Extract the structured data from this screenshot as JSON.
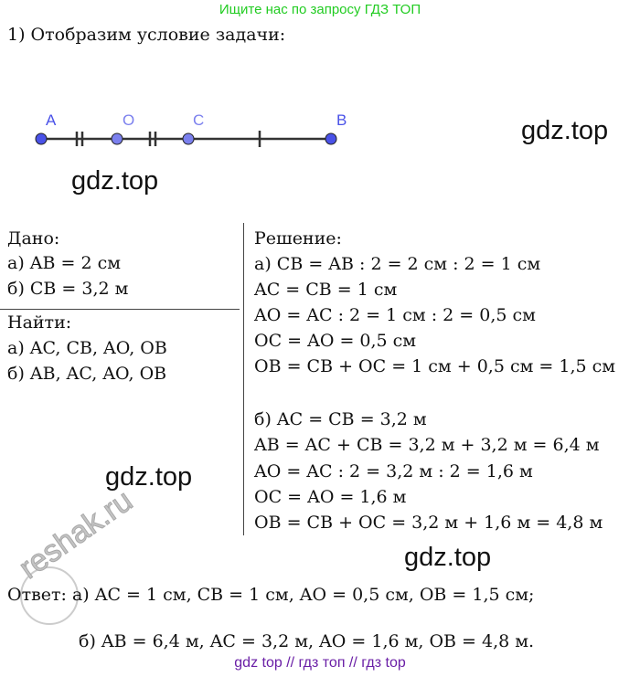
{
  "header_banner": "Ищите нас по запросу ГДЗ ТОП",
  "title": "1) Отобразим условие задачи:",
  "diagram": {
    "points": [
      "A",
      "O",
      "C",
      "B"
    ],
    "point_color": "#4a52e8"
  },
  "watermarks": [
    "gdz.top",
    "gdz.top",
    "gdz.top",
    "gdz.top"
  ],
  "reshak_watermark": "reshak.ru",
  "given": {
    "heading": "Дано:",
    "lines": [
      "а) AB = 2 см",
      "б) CB = 3,2 м"
    ]
  },
  "find": {
    "heading": "Найти:",
    "lines": [
      "а) AC, CB, AO, OB",
      "б) AB, AC, AO, OB"
    ]
  },
  "solution": {
    "heading": "Решение:",
    "lines": [
      "а) CB = AB : 2 = 2 см : 2 = 1 см",
      "AC = CB = 1 см",
      "AO = AC : 2 = 1 см : 2 = 0,5 см",
      "OC = AO = 0,5 см",
      "OB = CB + OC = 1 см + 0,5 см = 1,5 см",
      "б) AC = CB = 3,2 м",
      "AB = AC + CB = 3,2 м + 3,2 м = 6,4 м",
      "AO = AC : 2 = 3,2 м : 2 = 1,6 м",
      "OC = AO = 1,6 м",
      "OB = CB + OC = 3,2 м + 1,6 м = 4,8 м"
    ]
  },
  "answer": {
    "line1": "Ответ: а) AC = 1 см, CB = 1 см, AO = 0,5 см, OB = 1,5 см;",
    "line2": "б) AB = 6,4 м, AC = 3,2 м, AO = 1,6 м, OB = 4,8 м."
  },
  "footer": "gdz top  //  гдз топ  //  гдз top"
}
